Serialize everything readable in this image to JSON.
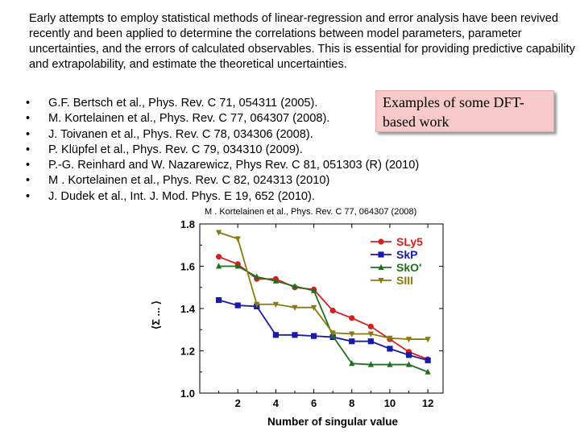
{
  "intro": "Early attempts to employ statistical methods of linear-regression and error analysis have been revived recently and been applied to determine the correlations between model parameters, parameter uncertainties, and the errors of calculated observables. This is essential for providing predictive capability and extrapolability, and estimate the theoretical uncertainties.",
  "references": [
    "G.F. Bertsch et al., Phys. Rev. C 71, 054311 (2005).",
    "M. Kortelainen et al., Phys. Rev. C 77, 064307 (2008).",
    "J. Toivanen et al.,  Phys. Rev. C 78, 034306 (2008).",
    "P. Klüpfel et al., Phys. Rev. C 79, 034310 (2009).",
    "P.-G. Reinhard and W. Nazarewicz, Phys Rev. C 81, 051303 (R)  (2010)",
    "M . Kortelainen et al., Phys. Rev. C 82, 024313 (2010)",
    "J. Dudek et al., Int. J. Mod. Phys. E 19, 652 (2010)."
  ],
  "bullet": "•",
  "callout": "Examples of some DFT-based work",
  "caption": "M . Kortelainen et al., Phys. Rev. C 77, 064307 (2008)",
  "chart_data": {
    "type": "line",
    "xlabel": "Number of singular value",
    "ylabel": "⟨Σ ... ⟩",
    "xlim": [
      0,
      12.8
    ],
    "ylim": [
      1.0,
      1.8
    ],
    "xticks": [
      2,
      4,
      6,
      8,
      10,
      12
    ],
    "yticks": [
      1.0,
      1.2,
      1.4,
      1.6,
      1.8
    ],
    "ytick_labels": [
      "1.0",
      "1.2",
      "1.4",
      "1.6",
      "1.8"
    ],
    "grid": false,
    "legend_position": "top-right",
    "x": [
      1,
      2,
      3,
      4,
      5,
      6,
      7,
      8,
      9,
      10,
      11,
      12
    ],
    "series": [
      {
        "name": "SLy5",
        "color": "#d42020",
        "marker": "circle",
        "values": [
          1.645,
          1.61,
          1.54,
          1.54,
          1.5,
          1.49,
          1.39,
          1.355,
          1.315,
          1.255,
          1.195,
          1.16
        ]
      },
      {
        "name": "SkP",
        "color": "#1a1aa8",
        "marker": "square",
        "values": [
          1.44,
          1.415,
          1.41,
          1.275,
          1.275,
          1.27,
          1.265,
          1.245,
          1.245,
          1.21,
          1.18,
          1.155
        ]
      },
      {
        "name": "SkO'",
        "color": "#1f6f1f",
        "marker": "triangle-up",
        "values": [
          1.6,
          1.6,
          1.55,
          1.53,
          1.505,
          1.485,
          1.27,
          1.14,
          1.135,
          1.135,
          1.135,
          1.1
        ]
      },
      {
        "name": "SIII",
        "color": "#8a7a10",
        "marker": "triangle-down",
        "values": [
          1.76,
          1.73,
          1.42,
          1.42,
          1.405,
          1.405,
          1.285,
          1.28,
          1.28,
          1.26,
          1.255,
          1.255
        ]
      }
    ]
  }
}
